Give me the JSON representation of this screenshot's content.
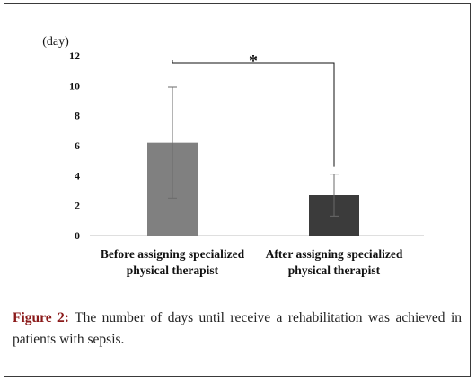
{
  "chart_data": {
    "type": "bar",
    "unit_label": "(day)",
    "ylim": [
      0,
      12
    ],
    "yticks": [
      "0",
      "2",
      "4",
      "6",
      "8",
      "10",
      "12"
    ],
    "categories": [
      [
        "Before assigning specialized",
        "physical therapist"
      ],
      [
        "After assigning specialized",
        "physical therapist"
      ]
    ],
    "values": [
      6.2,
      2.7
    ],
    "error_upper": [
      9.9,
      4.1
    ],
    "error_lower": [
      2.5,
      1.3
    ],
    "bar_colors": [
      "#808080",
      "#3b3b3b"
    ],
    "significance_marker": "*",
    "grid": false
  },
  "caption": {
    "label": "Figure 2:",
    "text": " The number of days until receive a rehabilitation was achieved in patients with sepsis."
  }
}
